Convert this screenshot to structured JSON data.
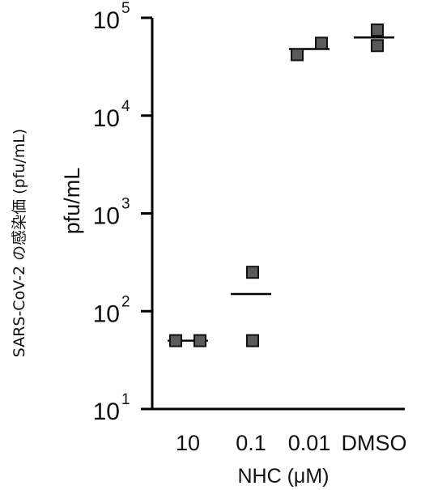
{
  "chart_data": {
    "type": "scatter",
    "xlabel": "NHC (μM)",
    "ylabel": "pfu/mL",
    "ylabel_secondary": "SARS-CoV-2 の感染価 (pfu/mL)",
    "y_scale": "log",
    "ylim": [
      10,
      100000
    ],
    "yticks": [
      {
        "base": "10",
        "exp": "1"
      },
      {
        "base": "10",
        "exp": "2"
      },
      {
        "base": "10",
        "exp": "3"
      },
      {
        "base": "10",
        "exp": "4"
      },
      {
        "base": "10",
        "exp": "5"
      }
    ],
    "categories": [
      "10",
      "0.1",
      "0.01",
      "DMSO"
    ],
    "points": [
      {
        "category": "10",
        "values": [
          50,
          50
        ],
        "mean": 50
      },
      {
        "category": "0.1",
        "values": [
          250,
          50
        ],
        "mean": 150
      },
      {
        "category": "0.01",
        "values": [
          42000,
          55000
        ],
        "mean": 48000
      },
      {
        "category": "DMSO",
        "values": [
          75000,
          52000
        ],
        "mean": 63000
      }
    ],
    "marker_color": "#5a5a5a",
    "axis_color": "#000000"
  }
}
